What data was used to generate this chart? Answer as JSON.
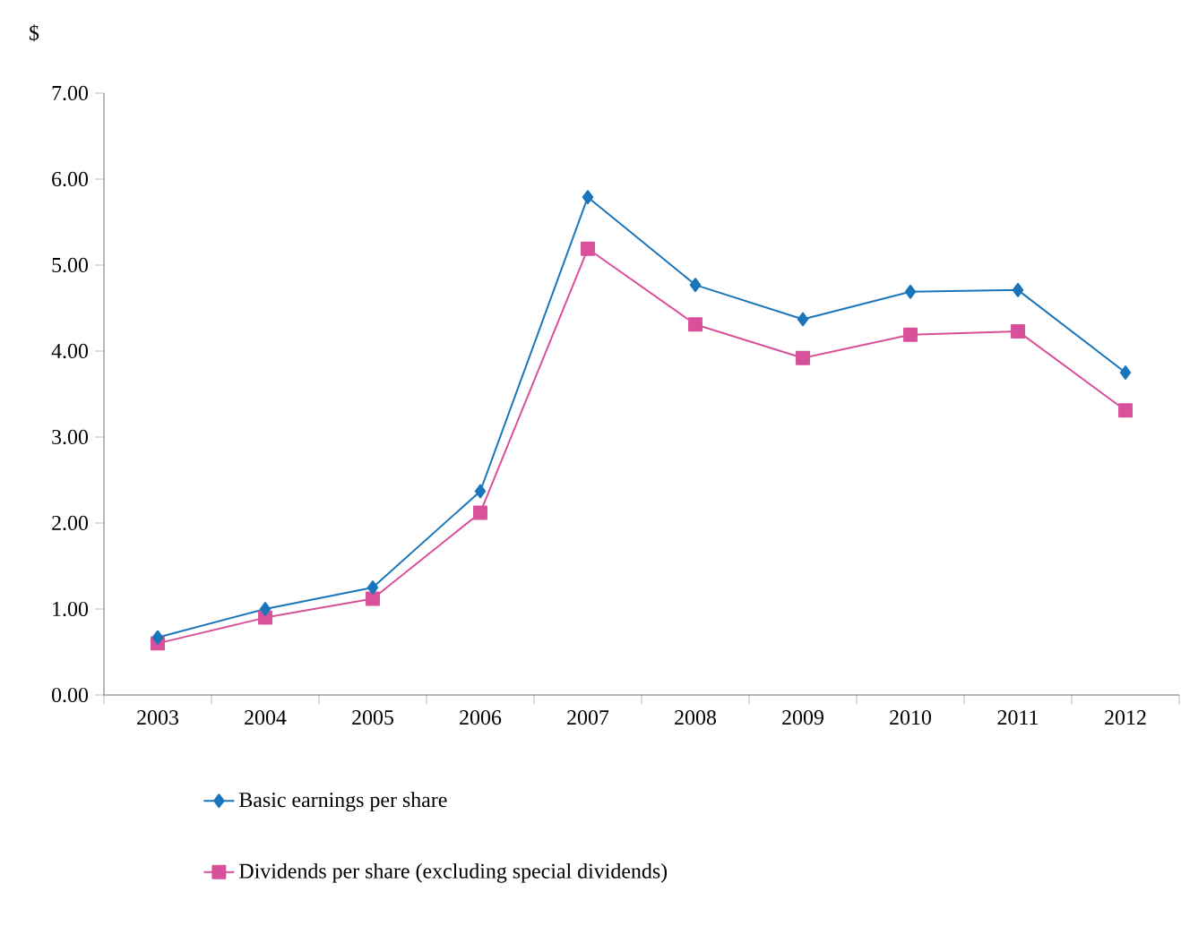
{
  "chart_data": {
    "type": "line",
    "ylabel": "$",
    "categories": [
      "2003",
      "2004",
      "2005",
      "2006",
      "2007",
      "2008",
      "2009",
      "2010",
      "2011",
      "2012"
    ],
    "series": [
      {
        "name": "Basic earnings per share",
        "color": "#1a75bb",
        "marker": "diamond",
        "values": [
          0.67,
          1.0,
          1.25,
          2.37,
          5.79,
          4.77,
          4.37,
          4.69,
          4.71,
          3.75
        ]
      },
      {
        "name": "Dividends per share (excluding special dividends)",
        "color": "#d9509a",
        "marker": "square",
        "values": [
          0.6,
          0.9,
          1.12,
          2.12,
          5.19,
          4.31,
          3.92,
          4.19,
          4.23,
          3.31
        ]
      }
    ],
    "ylim": [
      0,
      7
    ],
    "yticks": [
      {
        "value": 0,
        "label": "0.00"
      },
      {
        "value": 1,
        "label": "1.00"
      },
      {
        "value": 2,
        "label": "2.00"
      },
      {
        "value": 3,
        "label": "3.00"
      },
      {
        "value": 4,
        "label": "4.00"
      },
      {
        "value": 5,
        "label": "5.00"
      },
      {
        "value": 6,
        "label": "6.00"
      },
      {
        "value": 7,
        "label": "7.00"
      }
    ],
    "legend": "bottom"
  }
}
